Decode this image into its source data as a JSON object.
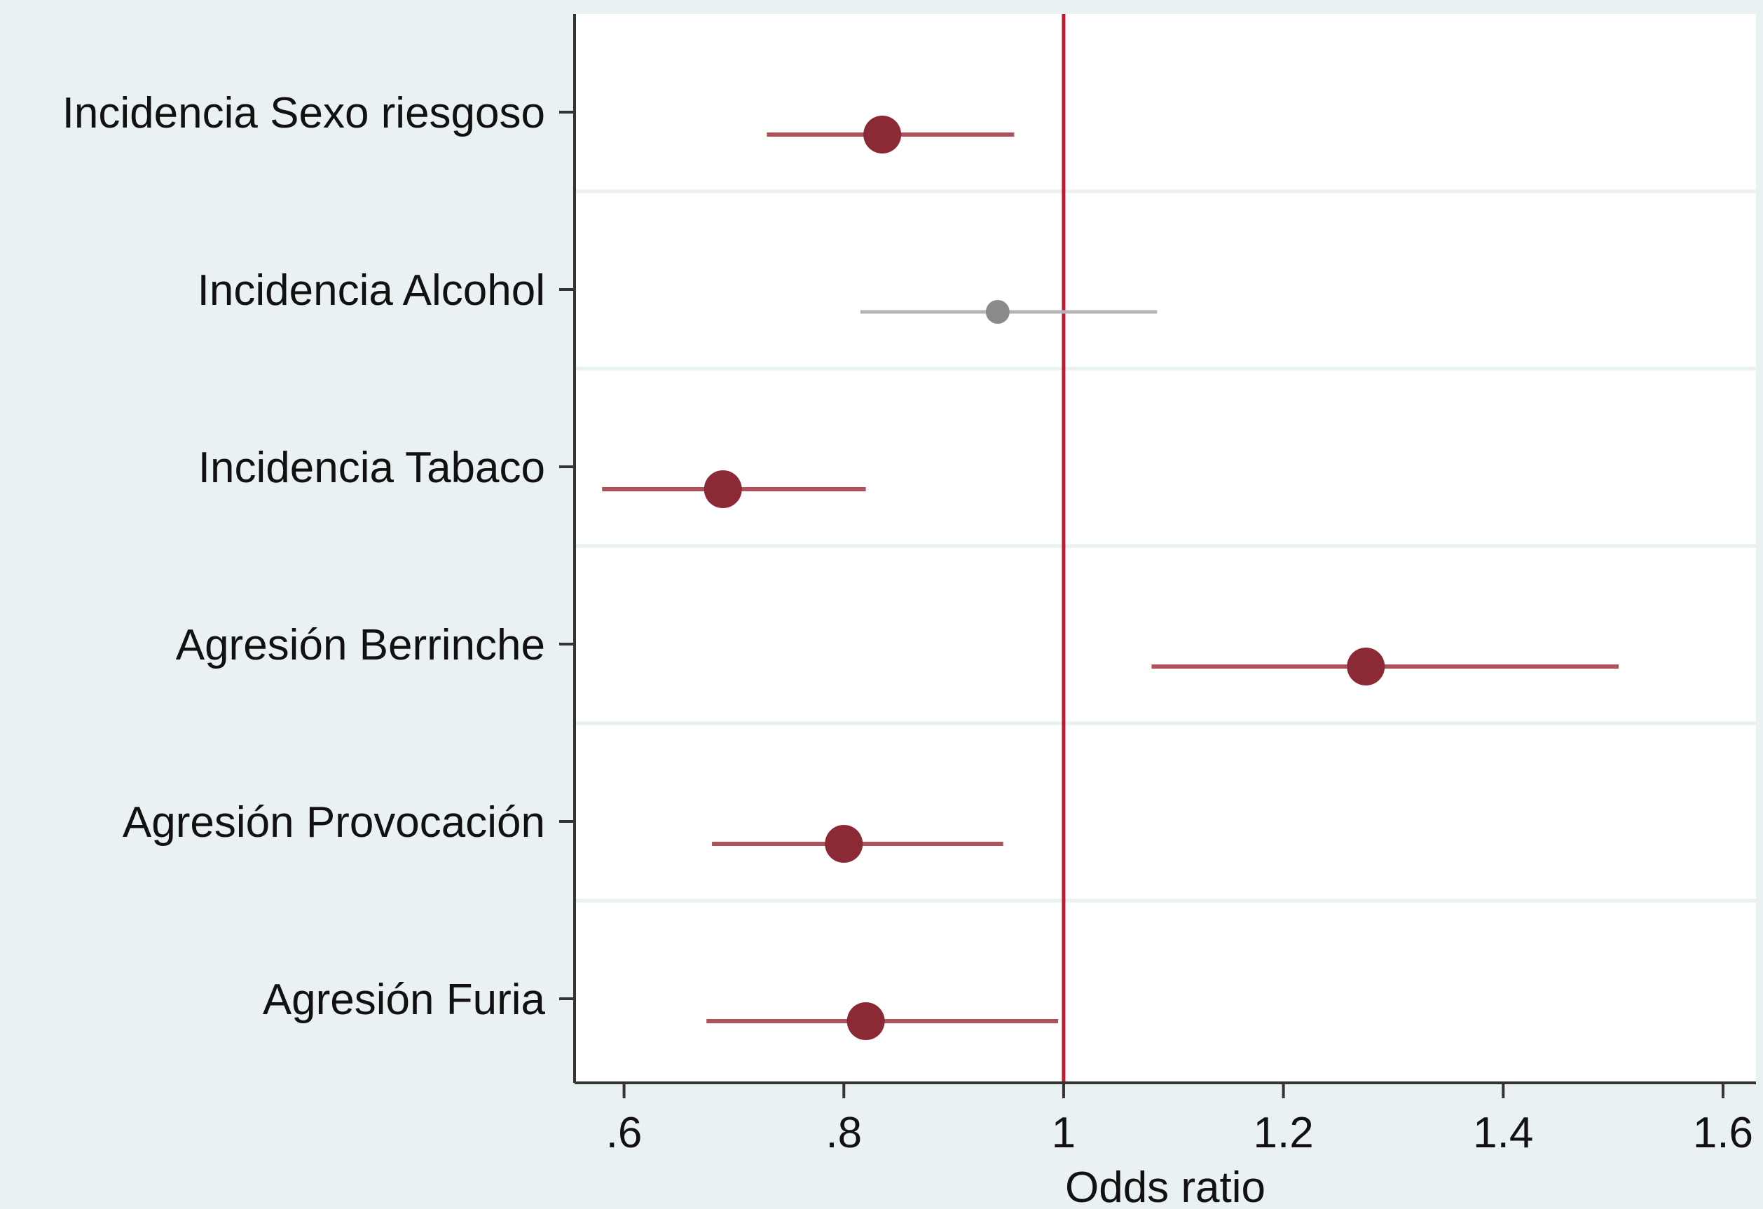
{
  "chart_data": {
    "type": "scatter",
    "subtype": "forest-plot",
    "categories": [
      "Incidencia Sexo riesgoso",
      "Incidencia Alcohol",
      "Incidencia Tabaco",
      "Agresión Berrinche",
      "Agresión Provocación",
      "Agresión Furia"
    ],
    "estimates": [
      0.835,
      0.94,
      0.69,
      1.275,
      0.8,
      0.82
    ],
    "ci_lower": [
      0.73,
      0.815,
      0.58,
      1.08,
      0.68,
      0.675
    ],
    "ci_upper": [
      0.955,
      1.085,
      0.82,
      1.505,
      0.945,
      0.995
    ],
    "significant": [
      true,
      false,
      true,
      true,
      true,
      true
    ],
    "xlabel": "Odds ratio",
    "xlim": [
      0.555,
      1.63
    ],
    "xticks": [
      0.6,
      0.8,
      1,
      1.2,
      1.4,
      1.6
    ],
    "xtick_labels": [
      ".6",
      ".8",
      "1",
      "1.2",
      "1.4",
      "1.6"
    ],
    "reference_line": 1,
    "grid": true,
    "colors": {
      "significant_marker": "#8b2a35",
      "significant_ci": "#b0505a",
      "nonsignificant_marker": "#8a8a8a",
      "nonsignificant_ci": "#b4b4b4",
      "reference_line": "#c0182f",
      "plot_background": "#ffffff",
      "outer_background": "#eaf1f3",
      "grid": "#eaf1f3",
      "axis": "#333333"
    }
  }
}
